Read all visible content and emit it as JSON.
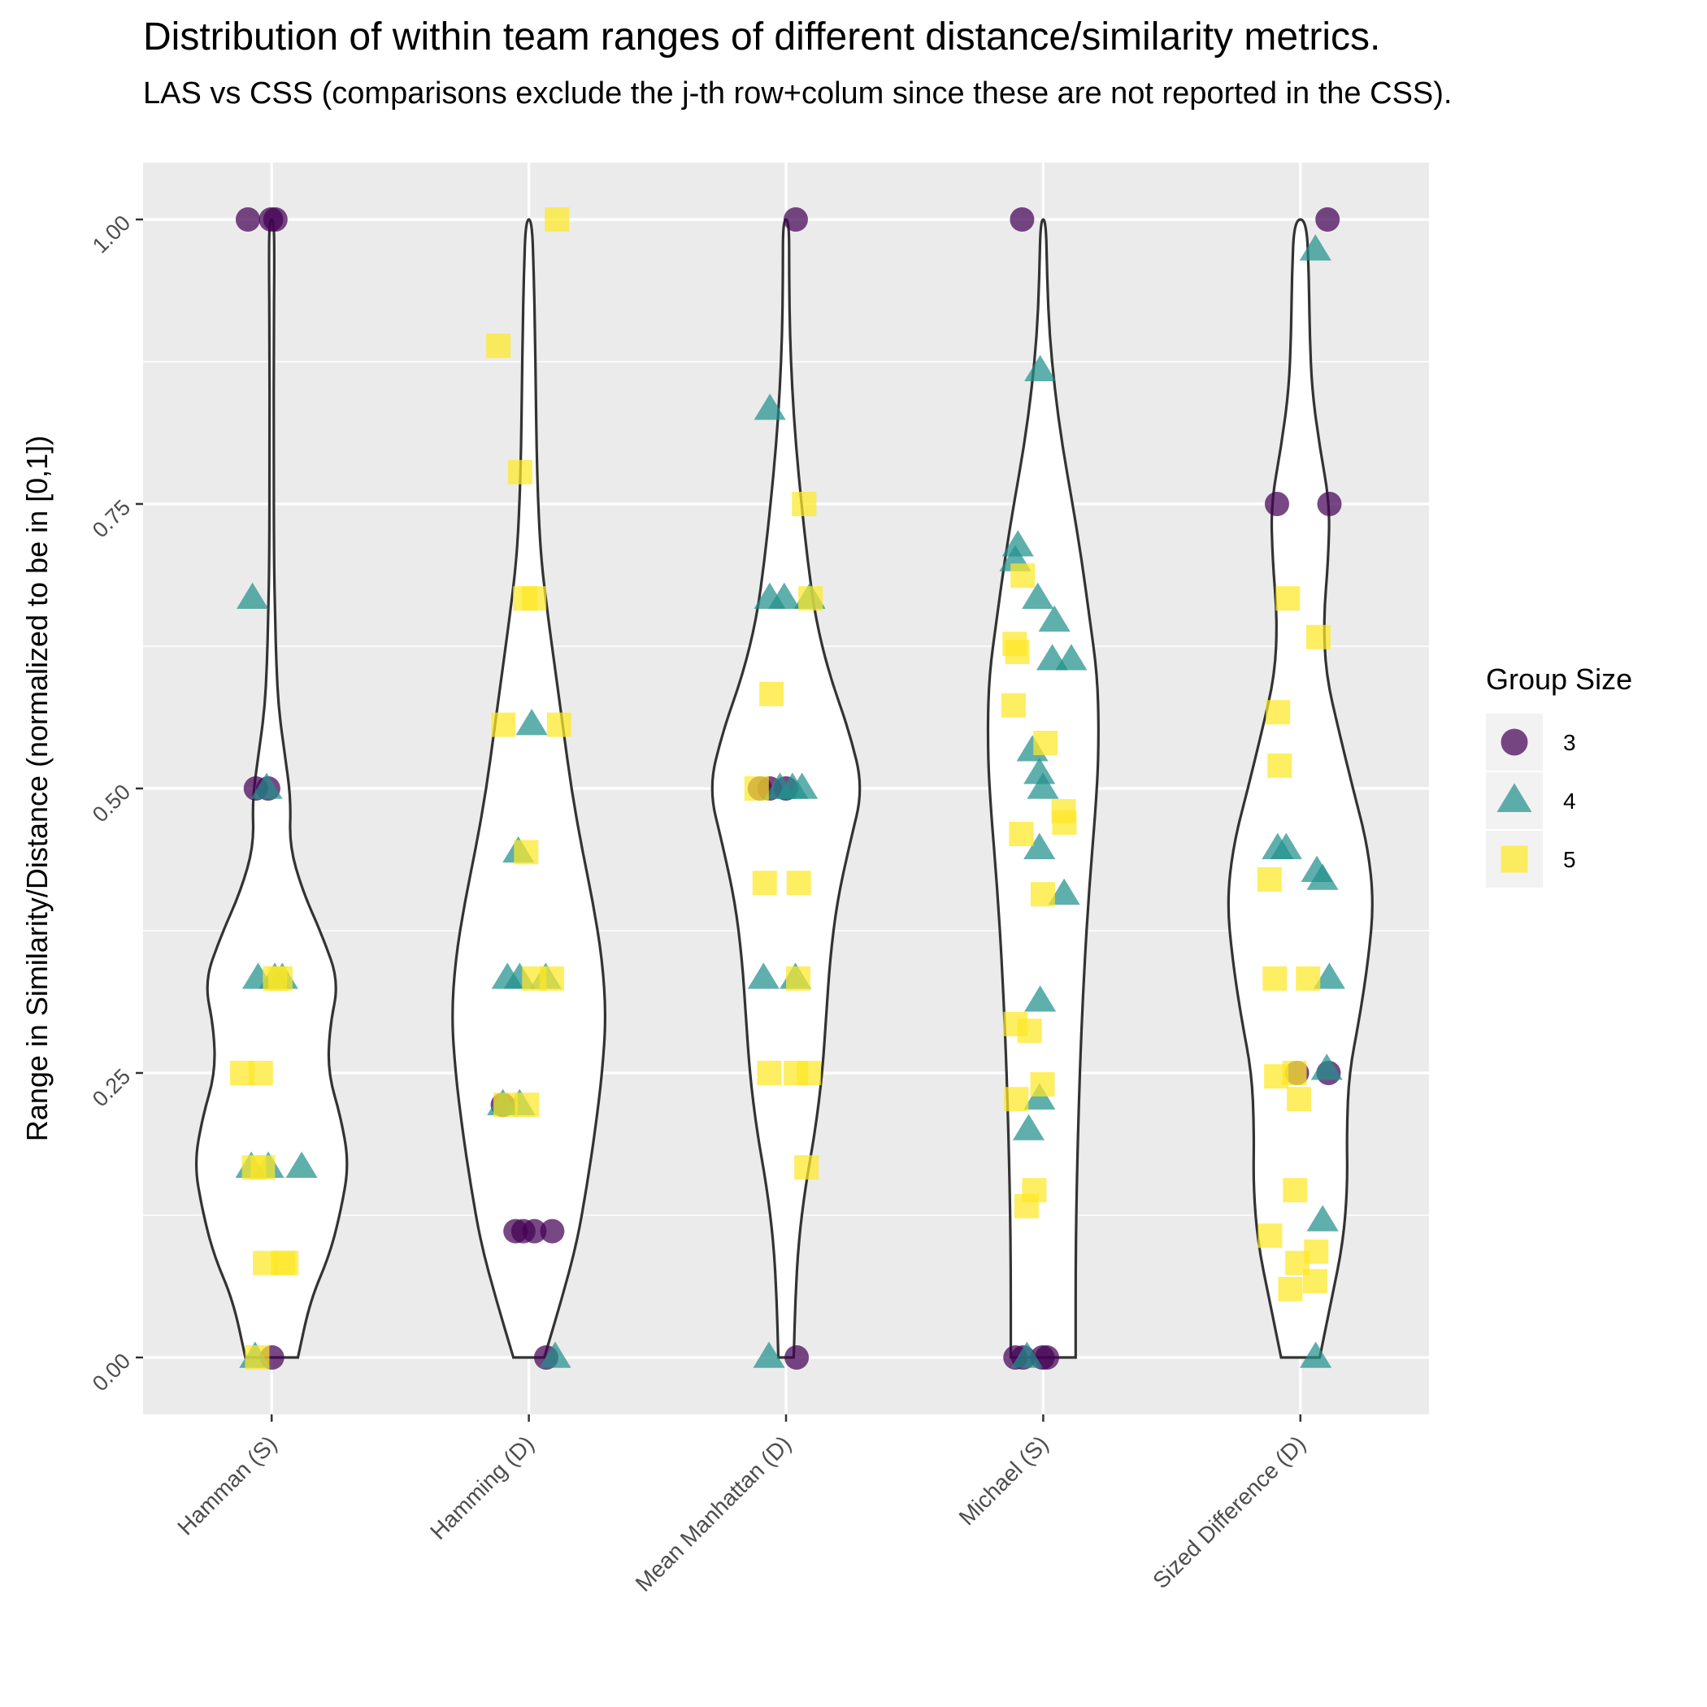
{
  "chart_data": {
    "type": "violin",
    "title": "Distribution of within team ranges of different distance/similarity metrics.",
    "subtitle": "LAS vs CSS (comparisons exclude the j-th row+colum since these are not reported in the CSS).",
    "xlabel": "",
    "ylabel": "Range in Similarity/Distance (normalized to be in [0,1])",
    "ylim": [
      -0.05,
      1.05
    ],
    "y_ticks": [
      "0.00",
      "0.25",
      "0.50",
      "0.75",
      "1.00"
    ],
    "y_tick_values": [
      0,
      0.25,
      0.5,
      0.75,
      1.0
    ],
    "grid": true,
    "legend": {
      "title": "Group Size",
      "position": "right",
      "entries": [
        {
          "label": "3",
          "shape": "circle",
          "color": "#440154"
        },
        {
          "label": "4",
          "shape": "triangle",
          "color": "#21908C"
        },
        {
          "label": "5",
          "shape": "square",
          "color": "#FDE725"
        }
      ]
    },
    "categories": [
      "Hamman (S)",
      "Hamming (D)",
      "Mean Manhattan (D)",
      "Michael (S)",
      "Sized Difference (D)"
    ],
    "violins": [
      [
        [
          0,
          0.34
        ],
        [
          0.05,
          0.5
        ],
        [
          0.09,
          0.75
        ],
        [
          0.13,
          0.9
        ],
        [
          0.17,
          1.0
        ],
        [
          0.21,
          0.9
        ],
        [
          0.25,
          0.73
        ],
        [
          0.29,
          0.75
        ],
        [
          0.33,
          0.87
        ],
        [
          0.37,
          0.66
        ],
        [
          0.41,
          0.4
        ],
        [
          0.45,
          0.23
        ],
        [
          0.49,
          0.25
        ],
        [
          0.53,
          0.17
        ],
        [
          0.57,
          0.09
        ],
        [
          0.61,
          0.06
        ],
        [
          0.65,
          0.045
        ],
        [
          0.7,
          0.03
        ],
        [
          0.8,
          0.027
        ],
        [
          0.9,
          0.027
        ],
        [
          0.96,
          0.035
        ],
        [
          1.0,
          0.03
        ]
      ],
      [
        [
          0,
          0.2
        ],
        [
          0.05,
          0.42
        ],
        [
          0.1,
          0.62
        ],
        [
          0.15,
          0.75
        ],
        [
          0.2,
          0.86
        ],
        [
          0.25,
          0.95
        ],
        [
          0.3,
          1.0
        ],
        [
          0.35,
          0.95
        ],
        [
          0.4,
          0.83
        ],
        [
          0.45,
          0.68
        ],
        [
          0.5,
          0.55
        ],
        [
          0.55,
          0.45
        ],
        [
          0.6,
          0.35
        ],
        [
          0.65,
          0.25
        ],
        [
          0.7,
          0.16
        ],
        [
          0.75,
          0.12
        ],
        [
          0.8,
          0.1
        ],
        [
          0.85,
          0.09
        ],
        [
          0.9,
          0.08
        ],
        [
          0.95,
          0.065
        ],
        [
          1.0,
          0.04
        ]
      ],
      [
        [
          0,
          0.1
        ],
        [
          0.05,
          0.12
        ],
        [
          0.1,
          0.16
        ],
        [
          0.15,
          0.25
        ],
        [
          0.2,
          0.38
        ],
        [
          0.25,
          0.47
        ],
        [
          0.3,
          0.52
        ],
        [
          0.35,
          0.57
        ],
        [
          0.4,
          0.66
        ],
        [
          0.45,
          0.82
        ],
        [
          0.5,
          1.0
        ],
        [
          0.55,
          0.82
        ],
        [
          0.6,
          0.56
        ],
        [
          0.65,
          0.38
        ],
        [
          0.7,
          0.28
        ],
        [
          0.75,
          0.2
        ],
        [
          0.8,
          0.13
        ],
        [
          0.85,
          0.08
        ],
        [
          0.9,
          0.05
        ],
        [
          0.95,
          0.04
        ],
        [
          1.0,
          0.04
        ]
      ],
      [
        [
          0,
          0.42
        ],
        [
          0.1,
          0.42
        ],
        [
          0.2,
          0.45
        ],
        [
          0.3,
          0.5
        ],
        [
          0.4,
          0.58
        ],
        [
          0.5,
          0.7
        ],
        [
          0.55,
          0.72
        ],
        [
          0.6,
          0.7
        ],
        [
          0.65,
          0.6
        ],
        [
          0.7,
          0.5
        ],
        [
          0.75,
          0.38
        ],
        [
          0.8,
          0.25
        ],
        [
          0.85,
          0.15
        ],
        [
          0.9,
          0.08
        ],
        [
          0.95,
          0.05
        ],
        [
          1.0,
          0.035
        ]
      ],
      [
        [
          0,
          0.25
        ],
        [
          0.05,
          0.4
        ],
        [
          0.1,
          0.55
        ],
        [
          0.15,
          0.61
        ],
        [
          0.2,
          0.6
        ],
        [
          0.25,
          0.63
        ],
        [
          0.3,
          0.77
        ],
        [
          0.35,
          0.88
        ],
        [
          0.4,
          0.95
        ],
        [
          0.45,
          0.87
        ],
        [
          0.5,
          0.68
        ],
        [
          0.55,
          0.5
        ],
        [
          0.6,
          0.33
        ],
        [
          0.65,
          0.3
        ],
        [
          0.7,
          0.36
        ],
        [
          0.75,
          0.38
        ],
        [
          0.8,
          0.25
        ],
        [
          0.85,
          0.15
        ],
        [
          0.9,
          0.12
        ],
        [
          0.95,
          0.11
        ],
        [
          1.0,
          0.08
        ]
      ]
    ],
    "series": [
      {
        "name": "3",
        "points": [
          [
            0,
            1.0
          ],
          [
            0,
            1.0
          ],
          [
            0,
            1.0
          ],
          [
            0,
            0.5
          ],
          [
            0,
            0.5
          ],
          [
            0,
            0.0
          ],
          [
            1,
            0.222
          ],
          [
            1,
            0.111
          ],
          [
            1,
            0.111
          ],
          [
            1,
            0.111
          ],
          [
            1,
            0.111
          ],
          [
            1,
            0.0
          ],
          [
            2,
            1.0
          ],
          [
            2,
            0.5
          ],
          [
            2,
            0.5
          ],
          [
            2,
            0.5
          ],
          [
            2,
            0.0
          ],
          [
            3,
            1.0
          ],
          [
            3,
            0.0
          ],
          [
            3,
            0.0
          ],
          [
            3,
            0.0
          ],
          [
            3,
            0.0
          ],
          [
            4,
            1.0
          ],
          [
            4,
            0.75
          ],
          [
            4,
            0.75
          ],
          [
            4,
            0.25
          ],
          [
            4,
            0.25
          ]
        ]
      },
      {
        "name": "4",
        "points": [
          [
            0,
            0.667
          ],
          [
            0,
            0.5
          ],
          [
            0,
            0.333
          ],
          [
            0,
            0.333
          ],
          [
            0,
            0.333
          ],
          [
            0,
            0.167
          ],
          [
            0,
            0.167
          ],
          [
            0,
            0.167
          ],
          [
            0,
            0.0
          ],
          [
            1,
            0.556
          ],
          [
            1,
            0.444
          ],
          [
            1,
            0.333
          ],
          [
            1,
            0.333
          ],
          [
            1,
            0.333
          ],
          [
            1,
            0.222
          ],
          [
            1,
            0.222
          ],
          [
            1,
            0.0
          ],
          [
            2,
            0.833
          ],
          [
            2,
            0.667
          ],
          [
            2,
            0.667
          ],
          [
            2,
            0.667
          ],
          [
            2,
            0.5
          ],
          [
            2,
            0.5
          ],
          [
            2,
            0.5
          ],
          [
            2,
            0.333
          ],
          [
            2,
            0.333
          ],
          [
            2,
            0.0
          ],
          [
            3,
            0.867
          ],
          [
            3,
            0.713
          ],
          [
            3,
            0.7
          ],
          [
            3,
            0.667
          ],
          [
            3,
            0.647
          ],
          [
            3,
            0.613
          ],
          [
            3,
            0.613
          ],
          [
            3,
            0.533
          ],
          [
            3,
            0.513
          ],
          [
            3,
            0.5
          ],
          [
            3,
            0.447
          ],
          [
            3,
            0.407
          ],
          [
            3,
            0.313
          ],
          [
            3,
            0.227
          ],
          [
            3,
            0.2
          ],
          [
            3,
            0.0
          ],
          [
            4,
            0.973
          ],
          [
            4,
            0.447
          ],
          [
            4,
            0.447
          ],
          [
            4,
            0.427
          ],
          [
            4,
            0.42
          ],
          [
            4,
            0.333
          ],
          [
            4,
            0.253
          ],
          [
            4,
            0.12
          ],
          [
            4,
            0.0
          ]
        ]
      },
      {
        "name": "5",
        "points": [
          [
            0,
            0.333
          ],
          [
            0,
            0.333
          ],
          [
            0,
            0.25
          ],
          [
            0,
            0.25
          ],
          [
            0,
            0.167
          ],
          [
            0,
            0.167
          ],
          [
            0,
            0.083
          ],
          [
            0,
            0.083
          ],
          [
            0,
            0.083
          ],
          [
            0,
            0.0
          ],
          [
            1,
            1.0
          ],
          [
            1,
            0.889
          ],
          [
            1,
            0.778
          ],
          [
            1,
            0.667
          ],
          [
            1,
            0.667
          ],
          [
            1,
            0.556
          ],
          [
            1,
            0.556
          ],
          [
            1,
            0.444
          ],
          [
            1,
            0.333
          ],
          [
            1,
            0.333
          ],
          [
            1,
            0.222
          ],
          [
            1,
            0.222
          ],
          [
            2,
            0.75
          ],
          [
            2,
            0.667
          ],
          [
            2,
            0.583
          ],
          [
            2,
            0.5
          ],
          [
            2,
            0.417
          ],
          [
            2,
            0.417
          ],
          [
            2,
            0.333
          ],
          [
            2,
            0.25
          ],
          [
            2,
            0.25
          ],
          [
            2,
            0.25
          ],
          [
            2,
            0.167
          ],
          [
            3,
            0.687
          ],
          [
            3,
            0.627
          ],
          [
            3,
            0.62
          ],
          [
            3,
            0.573
          ],
          [
            3,
            0.54
          ],
          [
            3,
            0.48
          ],
          [
            3,
            0.47
          ],
          [
            3,
            0.46
          ],
          [
            3,
            0.407
          ],
          [
            3,
            0.293
          ],
          [
            3,
            0.287
          ],
          [
            3,
            0.24
          ],
          [
            3,
            0.227
          ],
          [
            3,
            0.147
          ],
          [
            3,
            0.133
          ],
          [
            4,
            0.667
          ],
          [
            4,
            0.633
          ],
          [
            4,
            0.567
          ],
          [
            4,
            0.52
          ],
          [
            4,
            0.42
          ],
          [
            4,
            0.333
          ],
          [
            4,
            0.333
          ],
          [
            4,
            0.25
          ],
          [
            4,
            0.247
          ],
          [
            4,
            0.227
          ],
          [
            4,
            0.147
          ],
          [
            4,
            0.107
          ],
          [
            4,
            0.093
          ],
          [
            4,
            0.083
          ],
          [
            4,
            0.067
          ],
          [
            4,
            0.06
          ]
        ]
      }
    ]
  }
}
